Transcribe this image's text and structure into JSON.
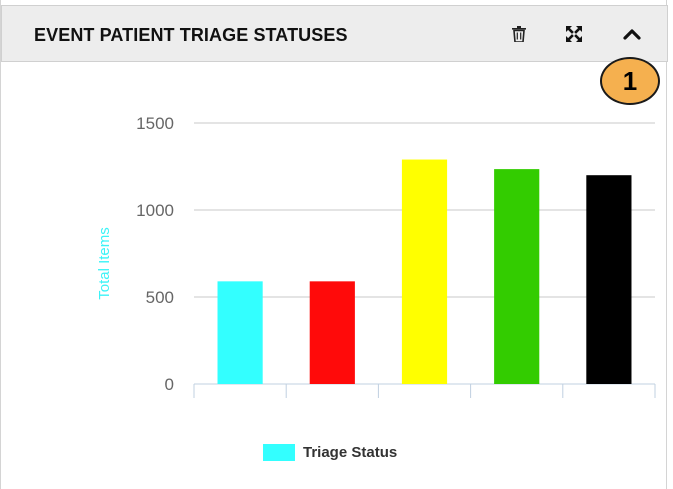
{
  "header": {
    "title": "EVENT PATIENT TRIAGE STATUSES",
    "icons": [
      "trash-icon",
      "expand-icon",
      "chevron-up-icon"
    ]
  },
  "callout": {
    "label": "1",
    "color": "#f5b04f"
  },
  "chart_data": {
    "type": "bar",
    "ylabel": "Total Items",
    "ylabel_color": "#3cf3f7",
    "ylim": [
      0,
      1500
    ],
    "yticks": [
      0,
      500,
      1000,
      1500
    ],
    "grid": true,
    "categories": [
      "",
      "",
      "",
      "",
      ""
    ],
    "series": [
      {
        "name": "Triage Status",
        "values": [
          590,
          590,
          1290,
          1235,
          1200
        ],
        "colors": [
          "#33ffff",
          "#ff0a0a",
          "#ffff00",
          "#33cc00",
          "#000000"
        ]
      }
    ],
    "legend": {
      "position": "bottom",
      "swatch_color": "#33ffff"
    }
  }
}
